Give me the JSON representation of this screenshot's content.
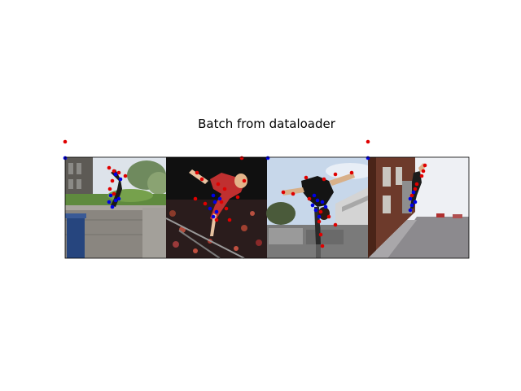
{
  "figure": {
    "title": "Batch from dataloader"
  },
  "keypoint_colors": {
    "red": "#e00000",
    "blue": "#0000e6"
  },
  "photos": [
    {
      "subject": "person doing a handstand on a stone wall",
      "scene": "outdoor stone wall, hedge, blue trash bin, trees and building",
      "palette": {
        "sky": "#dfe4ea",
        "ground": "#86837e",
        "accent": "#2a4d8a"
      }
    },
    {
      "subject": "gymnast on uneven bars",
      "scene": "arena with dark crowd background",
      "palette": {
        "sky": "#151515",
        "ground": "#3a2a2a",
        "accent": "#c0392b"
      }
    },
    {
      "subject": "person vaulting over a railing in a flip",
      "scene": "rooftop with concrete barrier and sky",
      "palette": {
        "sky": "#c8d8ec",
        "ground": "#7c7c7c",
        "accent": "#d9d9d9"
      }
    },
    {
      "subject": "person doing a handstand against a brick wall",
      "scene": "street with brick building and sidewalk",
      "palette": {
        "sky": "#eef0f4",
        "ground": "#8f8c90",
        "accent": "#6e3b2b"
      }
    }
  ]
}
